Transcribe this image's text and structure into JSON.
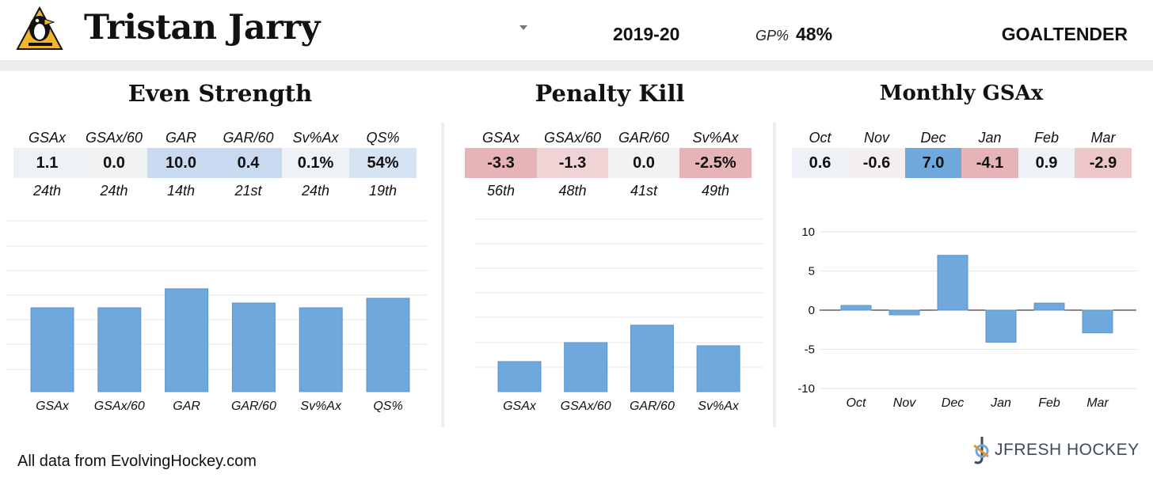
{
  "header": {
    "player_name": "Tristan Jarry",
    "season": "2019-20",
    "gp_label": "GP%",
    "gp_value": "48%",
    "position": "GOALTENDER"
  },
  "colors": {
    "bar": "#6fa8dc",
    "positive_strong": "#6fa8dc",
    "positive_light": "#c9daf0",
    "neutral": "#eef1f6",
    "negative_light": "#efd3d5",
    "negative_strong": "#e6b4b7"
  },
  "even_strength": {
    "title": "Even Strength",
    "stats": [
      {
        "label": "GSAx",
        "value": "1.1",
        "rank": "24th",
        "tone": "neutral"
      },
      {
        "label": "GSAx/60",
        "value": "0.0",
        "rank": "24th",
        "tone": "neutral"
      },
      {
        "label": "GAR",
        "value": "10.0",
        "rank": "14th",
        "tone": "positive_light"
      },
      {
        "label": "GAR/60",
        "value": "0.4",
        "rank": "21st",
        "tone": "positive_light"
      },
      {
        "label": "Sv%Ax",
        "value": "0.1%",
        "rank": "24th",
        "tone": "neutral"
      },
      {
        "label": "QS%",
        "value": "54%",
        "rank": "19th",
        "tone": "positive_light"
      }
    ]
  },
  "penalty_kill": {
    "title": "Penalty Kill",
    "stats": [
      {
        "label": "GSAx",
        "value": "-3.3",
        "rank": "56th",
        "tone": "negative_strong"
      },
      {
        "label": "GSAx/60",
        "value": "-1.3",
        "rank": "48th",
        "tone": "negative_light"
      },
      {
        "label": "GAR/60",
        "value": "0.0",
        "rank": "41st",
        "tone": "neutral"
      },
      {
        "label": "Sv%Ax",
        "value": "-2.5%",
        "rank": "49th",
        "tone": "negative_strong"
      }
    ]
  },
  "monthly": {
    "title": "Monthly GSAx",
    "stats": [
      {
        "label": "Oct",
        "value": "0.6",
        "tone": "neutral"
      },
      {
        "label": "Nov",
        "value": "-0.6",
        "tone": "neutral"
      },
      {
        "label": "Dec",
        "value": "7.0",
        "tone": "positive_strong"
      },
      {
        "label": "Jan",
        "value": "-4.1",
        "tone": "negative_strong"
      },
      {
        "label": "Feb",
        "value": "0.9",
        "tone": "neutral"
      },
      {
        "label": "Mar",
        "value": "-2.9",
        "tone": "negative_strong"
      }
    ]
  },
  "chart_data": [
    {
      "type": "bar",
      "categories": [
        "GSAx",
        "GSAx/60",
        "GAR",
        "GAR/60",
        "Sv%Ax",
        "QS%"
      ],
      "values": [
        0.53,
        0.53,
        0.65,
        0.56,
        0.53,
        0.59
      ],
      "ylim": [
        0,
        1
      ],
      "grid": true
    },
    {
      "type": "bar",
      "categories": [
        "GSAx",
        "GSAx/60",
        "GAR/60",
        "Sv%Ax"
      ],
      "values": [
        0.19,
        0.31,
        0.42,
        0.29
      ],
      "ylim": [
        0,
        1
      ],
      "grid": true
    },
    {
      "type": "bar",
      "categories": [
        "Oct",
        "Nov",
        "Dec",
        "Jan",
        "Feb",
        "Mar"
      ],
      "values": [
        0.6,
        -0.6,
        7.0,
        -4.1,
        0.9,
        -2.9
      ],
      "yticks": [
        "10",
        "5",
        "0",
        "-5",
        "-10"
      ],
      "ylim": [
        -10,
        10
      ],
      "grid": true
    }
  ],
  "footer": {
    "source": "All data from EvolvingHockey.com",
    "brand": "JFRESH HOCKEY"
  }
}
